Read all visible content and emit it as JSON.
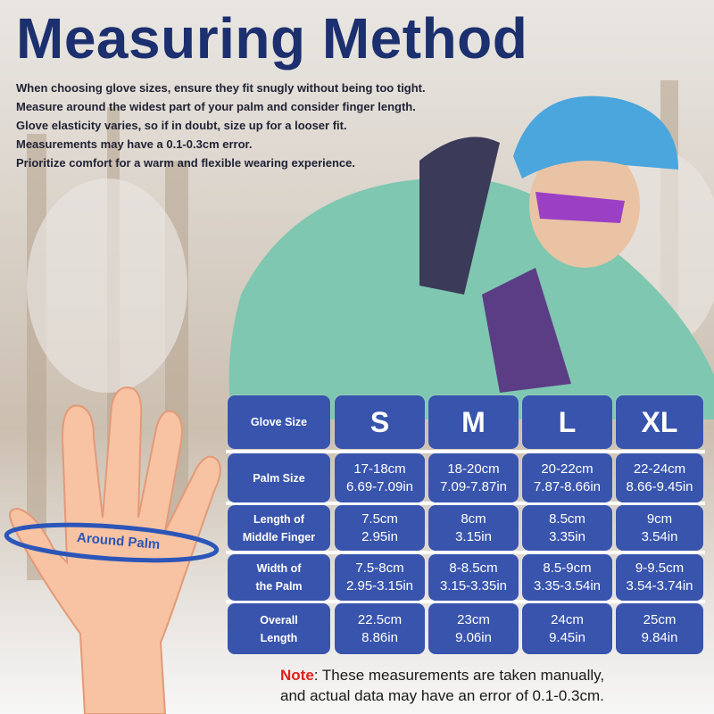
{
  "title": "Measuring Method",
  "tips": [
    "When choosing glove sizes, ensure they fit snugly without being too tight.",
    "Measure around the widest part of your palm and consider finger length.",
    "Glove elasticity varies, so if in doubt, size up for a looser fit.",
    "Measurements may have a 0.1-0.3cm error.",
    "Prioritize comfort for a warm and flexible wearing experience."
  ],
  "hand_label": "Around Palm",
  "table": {
    "header": {
      "label": "Glove Size",
      "sizes": [
        "S",
        "M",
        "L",
        "XL"
      ]
    },
    "rows": [
      {
        "label": [
          "Palm Size",
          ""
        ],
        "values": [
          [
            "17-18cm",
            "6.69-7.09in"
          ],
          [
            "18-20cm",
            "7.09-7.87in"
          ],
          [
            "20-22cm",
            "7.87-8.66in"
          ],
          [
            "22-24cm",
            "8.66-9.45in"
          ]
        ]
      },
      {
        "label": [
          "Length of",
          "Middle Finger"
        ],
        "values": [
          [
            "7.5cm",
            "2.95in"
          ],
          [
            "8cm",
            "3.15in"
          ],
          [
            "8.5cm",
            "3.35in"
          ],
          [
            "9cm",
            "3.54in"
          ]
        ]
      },
      {
        "label": [
          "Width of",
          "the Palm"
        ],
        "values": [
          [
            "7.5-8cm",
            "2.95-3.15in"
          ],
          [
            "8-8.5cm",
            "3.15-3.35in"
          ],
          [
            "8.5-9cm",
            "3.35-3.54in"
          ],
          [
            "9-9.5cm",
            "3.54-3.74in"
          ]
        ]
      },
      {
        "label": [
          "Overall",
          "Length"
        ],
        "values": [
          [
            "22.5cm",
            "8.86in"
          ],
          [
            "23cm",
            "9.06in"
          ],
          [
            "24cm",
            "9.45in"
          ],
          [
            "25cm",
            "9.84in"
          ]
        ]
      }
    ]
  },
  "note": {
    "prefix": "Note",
    "line1": ": These measurements are taken manually,",
    "line2": "and actual data may have an error of 0.1-0.3cm."
  },
  "colors": {
    "title": "#1c2f6e",
    "cell": "#3854ad",
    "note_prefix": "#e0201b"
  }
}
